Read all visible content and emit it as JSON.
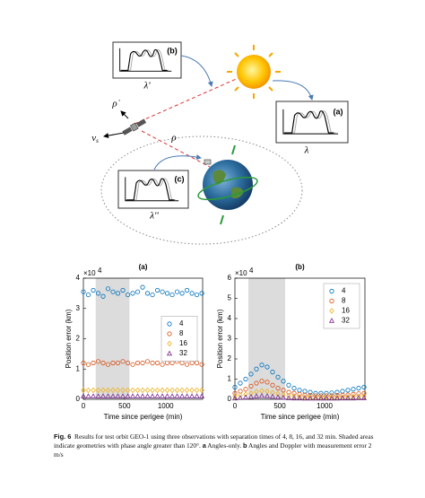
{
  "diagram": {
    "box_b": {
      "tag": "(b)",
      "axis": "λ'"
    },
    "box_a": {
      "tag": "(a)",
      "axis": "λ"
    },
    "box_c": {
      "tag": "(c)",
      "axis": "λ''"
    },
    "range_rate": "ρ̇",
    "velocity": {
      "symbol": "v",
      "subscript": "s"
    },
    "range": "ρ"
  },
  "chart_data": [
    {
      "type": "scatter",
      "title": "(a)",
      "xlabel": "Time since perigee (min)",
      "ylabel": "Position error (km)",
      "y_multiplier": {
        "base": "×10",
        "exponent": "4"
      },
      "xlim": [
        0,
        1450
      ],
      "ylim": [
        0,
        4
      ],
      "xticks": [
        0,
        500,
        1000
      ],
      "yticks": [
        0,
        1,
        2,
        3,
        4
      ],
      "shaded": [
        150,
        560
      ],
      "legend": "center right",
      "x": [
        0,
        60,
        120,
        180,
        240,
        300,
        360,
        420,
        480,
        540,
        600,
        660,
        720,
        780,
        840,
        900,
        960,
        1020,
        1080,
        1140,
        1200,
        1260,
        1320,
        1380,
        1440
      ],
      "series": [
        {
          "name": "4",
          "color": "#0072bd",
          "marker": "circle",
          "values": [
            3.55,
            3.45,
            3.6,
            3.5,
            3.4,
            3.65,
            3.55,
            3.5,
            3.6,
            3.45,
            3.5,
            3.55,
            3.7,
            3.5,
            3.45,
            3.6,
            3.55,
            3.5,
            3.45,
            3.55,
            3.5,
            3.6,
            3.5,
            3.45,
            3.5
          ]
        },
        {
          "name": "8",
          "color": "#d95319",
          "marker": "circle",
          "values": [
            1.2,
            1.15,
            1.2,
            1.25,
            1.2,
            1.15,
            1.2,
            1.2,
            1.25,
            1.2,
            1.15,
            1.2,
            1.2,
            1.25,
            1.2,
            1.2,
            1.15,
            1.2,
            1.2,
            1.25,
            1.2,
            1.15,
            1.2,
            1.2,
            1.15
          ]
        },
        {
          "name": "16",
          "color": "#edb120",
          "marker": "diamond",
          "values": [
            0.3,
            0.3,
            0.3,
            0.3,
            0.3,
            0.3,
            0.3,
            0.3,
            0.3,
            0.3,
            0.3,
            0.3,
            0.3,
            0.3,
            0.3,
            0.3,
            0.3,
            0.3,
            0.3,
            0.3,
            0.3,
            0.3,
            0.3,
            0.3,
            0.3
          ]
        },
        {
          "name": "32",
          "color": "#7e2f8e",
          "marker": "triangle",
          "values": [
            0.1,
            0.1,
            0.1,
            0.1,
            0.1,
            0.1,
            0.1,
            0.1,
            0.1,
            0.1,
            0.1,
            0.1,
            0.1,
            0.1,
            0.1,
            0.1,
            0.1,
            0.1,
            0.1,
            0.1,
            0.1,
            0.1,
            0.1,
            0.1,
            0.1
          ]
        }
      ]
    },
    {
      "type": "scatter",
      "title": "(b)",
      "xlabel": "Time since perigee (min)",
      "ylabel": "Position error (km)",
      "y_multiplier": {
        "base": "×10",
        "exponent": "4"
      },
      "xlim": [
        0,
        1450
      ],
      "ylim": [
        0,
        6
      ],
      "xticks": [
        0,
        500,
        1000
      ],
      "yticks": [
        0,
        1,
        2,
        3,
        4,
        5,
        6
      ],
      "shaded": [
        150,
        560
      ],
      "legend": "upper right",
      "x": [
        0,
        60,
        120,
        180,
        240,
        300,
        360,
        420,
        480,
        540,
        600,
        660,
        720,
        780,
        840,
        900,
        960,
        1020,
        1080,
        1140,
        1200,
        1260,
        1320,
        1380,
        1440
      ],
      "series": [
        {
          "name": "4",
          "color": "#0072bd",
          "marker": "circle",
          "values": [
            0.6,
            0.8,
            1.0,
            1.25,
            1.5,
            1.7,
            1.6,
            1.35,
            1.1,
            0.9,
            0.7,
            0.55,
            0.45,
            0.4,
            0.35,
            0.3,
            0.3,
            0.3,
            0.32,
            0.35,
            0.4,
            0.45,
            0.5,
            0.55,
            0.6
          ]
        },
        {
          "name": "8",
          "color": "#d95319",
          "marker": "circle",
          "values": [
            0.3,
            0.4,
            0.5,
            0.65,
            0.8,
            0.9,
            0.85,
            0.7,
            0.55,
            0.45,
            0.35,
            0.3,
            0.25,
            0.2,
            0.2,
            0.18,
            0.18,
            0.18,
            0.18,
            0.2,
            0.2,
            0.22,
            0.25,
            0.28,
            0.3
          ]
        },
        {
          "name": "16",
          "color": "#edb120",
          "marker": "diamond",
          "values": [
            0.15,
            0.2,
            0.25,
            0.3,
            0.38,
            0.42,
            0.4,
            0.33,
            0.27,
            0.22,
            0.18,
            0.15,
            0.12,
            0.1,
            0.1,
            0.1,
            0.1,
            0.1,
            0.1,
            0.1,
            0.1,
            0.12,
            0.13,
            0.14,
            0.15
          ]
        },
        {
          "name": "32",
          "color": "#7e2f8e",
          "marker": "triangle",
          "values": [
            0.05,
            0.07,
            0.1,
            0.12,
            0.15,
            0.17,
            0.16,
            0.13,
            0.1,
            0.08,
            0.06,
            0.05,
            0.05,
            0.04,
            0.04,
            0.04,
            0.04,
            0.04,
            0.04,
            0.04,
            0.05,
            0.05,
            0.05,
            0.06,
            0.06
          ]
        }
      ]
    }
  ],
  "caption": {
    "label": "Fig. 6",
    "parts": [
      "Results for test orbit GEO-1 using three observations with separation times of 4, 8, 16, and 32 min. Shaded areas indicate geometries with phase angle greater than 120°. ",
      "a",
      " Angles-only. ",
      "b",
      " Angles and Doppler with measurement error 2 m/s"
    ]
  }
}
